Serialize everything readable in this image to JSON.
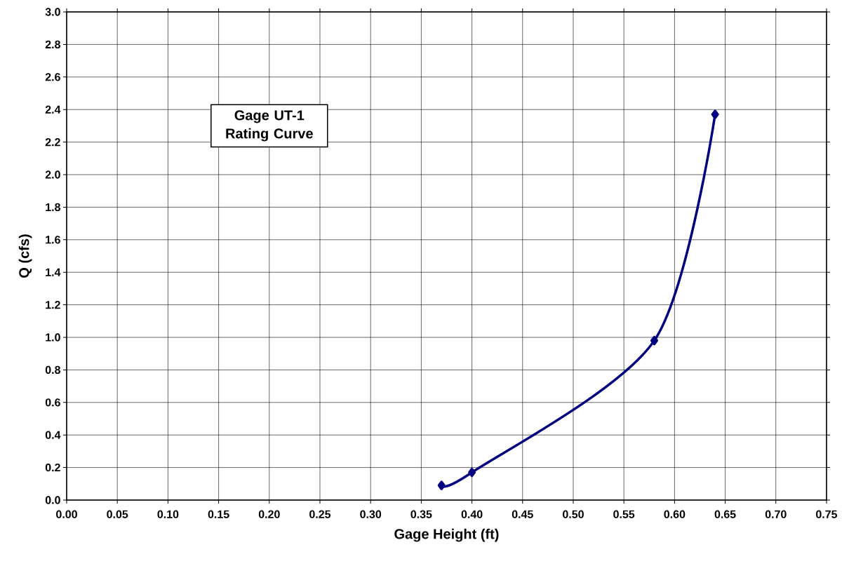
{
  "chart_data": {
    "type": "line",
    "title": "Gage UT-1 Rating Curve",
    "xlabel": "Gage Height (ft)",
    "ylabel": "Q (cfs)",
    "x": [
      0.37,
      0.4,
      0.58,
      0.64
    ],
    "series": [
      {
        "color": "#000080",
        "values": [
          0.09,
          0.17,
          0.98,
          2.37
        ]
      }
    ],
    "xlim": [
      0,
      0.75
    ],
    "ylim": [
      0,
      3.0
    ],
    "xticks": [
      {
        "value": 0,
        "label": "0.00"
      },
      {
        "value": 0.05,
        "label": "0.05"
      },
      {
        "value": 0.1,
        "label": "0.10"
      },
      {
        "value": 0.15,
        "label": "0.15"
      },
      {
        "value": 0.2,
        "label": "0.20"
      },
      {
        "value": 0.25,
        "label": "0.25"
      },
      {
        "value": 0.3,
        "label": "0.30"
      },
      {
        "value": 0.35,
        "label": "0.35"
      },
      {
        "value": 0.4,
        "label": "0.40"
      },
      {
        "value": 0.45,
        "label": "0.45"
      },
      {
        "value": 0.5,
        "label": "0.50"
      },
      {
        "value": 0.55,
        "label": "0.55"
      },
      {
        "value": 0.6,
        "label": "0.60"
      },
      {
        "value": 0.65,
        "label": "0.65"
      },
      {
        "value": 0.7,
        "label": "0.70"
      },
      {
        "value": 0.75,
        "label": "0.75"
      }
    ],
    "yticks": [
      {
        "value": 0,
        "label": "0.0"
      },
      {
        "value": 0.2,
        "label": "0.2"
      },
      {
        "value": 0.4,
        "label": "0.4"
      },
      {
        "value": 0.6,
        "label": "0.6"
      },
      {
        "value": 0.8,
        "label": "0.8"
      },
      {
        "value": 1.0,
        "label": "1.0"
      },
      {
        "value": 1.2,
        "label": "1.2"
      },
      {
        "value": 1.4,
        "label": "1.4"
      },
      {
        "value": 1.6,
        "label": "1.6"
      },
      {
        "value": 1.8,
        "label": "1.8"
      },
      {
        "value": 2.0,
        "label": "2.0"
      },
      {
        "value": 2.2,
        "label": "2.2"
      },
      {
        "value": 2.4,
        "label": "2.4"
      },
      {
        "value": 2.6,
        "label": "2.6"
      },
      {
        "value": 2.8,
        "label": "2.8"
      },
      {
        "value": 3.0,
        "label": "3.0"
      }
    ],
    "grid": true,
    "marker": "diamond",
    "line_style": "solid"
  }
}
